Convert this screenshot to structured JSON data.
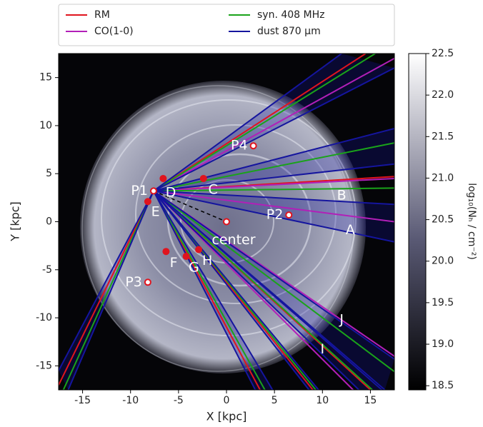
{
  "chart_data": {
    "type": "sightlines",
    "xlabel": "X [kpc]",
    "ylabel": "Y [kpc]",
    "xlim": [
      -17.5,
      17.5
    ],
    "ylim": [
      -17.5,
      17.5
    ],
    "xticks": [
      -15,
      -10,
      -5,
      0,
      5,
      10,
      15
    ],
    "yticks": [
      -15,
      -10,
      -5,
      0,
      5,
      10,
      15
    ],
    "series": [
      {
        "name": "RM",
        "color": "#e0141e",
        "x_end": [
          14.5,
          17.5,
          15.0,
          9.0,
          3.5,
          -17.5
        ],
        "y_end": [
          17.5,
          4.7,
          -17.5,
          -17.5,
          -17.5,
          -17.0
        ]
      },
      {
        "name": "CO(1-0)",
        "color": "#b21fb8",
        "x_end": [
          17.5,
          17.5,
          17.5,
          17.5,
          13.2
        ],
        "y_end": [
          17.0,
          4.5,
          0.0,
          -14.0,
          -17.5
        ]
      },
      {
        "name": "syn. 408 MHz",
        "color": "#1aa31a",
        "x_end": [
          15.5,
          17.5,
          17.5,
          17.5,
          15.2,
          9.3,
          4.0,
          -17.0
        ],
        "y_end": [
          17.5,
          8.2,
          3.5,
          -15.6,
          -17.5,
          -17.5,
          -17.5,
          -17.5
        ]
      },
      {
        "name": "dust 870 μm",
        "color": "#15159e",
        "x_end": [
          12.0,
          17.5,
          17.5,
          17.5,
          17.5,
          17.5,
          17.5,
          16.5,
          13.8,
          16.2,
          8.6,
          9.6,
          3.0,
          4.8,
          -17.5,
          -16.5
        ],
        "y_end": [
          17.5,
          16.0,
          9.7,
          6.0,
          1.8,
          -2.1,
          -14.3,
          -17.5,
          -17.5,
          -17.5,
          -17.5,
          -17.5,
          -17.5,
          -17.5,
          -15.5,
          -17.5
        ]
      }
    ],
    "points": [
      {
        "label": "P1",
        "x": -7.6,
        "y": 3.2
      },
      {
        "label": "P2",
        "x": 6.5,
        "y": 0.7
      },
      {
        "label": "P3",
        "x": -8.2,
        "y": -6.3
      },
      {
        "label": "P4",
        "x": 2.8,
        "y": 7.9
      },
      {
        "label": "center",
        "x": 0.0,
        "y": 0.0
      }
    ],
    "targets": {
      "x": [
        -6.6,
        -2.4,
        -8.2,
        -6.3,
        -4.2,
        -2.9
      ],
      "y": [
        4.5,
        4.5,
        2.1,
        -3.1,
        -3.6,
        -2.9
      ]
    },
    "annotations": [
      {
        "text": "A",
        "x": 12.9,
        "y": -0.9
      },
      {
        "text": "B",
        "x": 12.0,
        "y": 2.7
      },
      {
        "text": "C",
        "x": -1.4,
        "y": 3.3
      },
      {
        "text": "D",
        "x": -5.8,
        "y": 3.0
      },
      {
        "text": "E",
        "x": -7.4,
        "y": 1.0
      },
      {
        "text": "F",
        "x": -5.5,
        "y": -4.3
      },
      {
        "text": "G",
        "x": -3.4,
        "y": -4.8
      },
      {
        "text": "H",
        "x": -2.0,
        "y": -4.1
      },
      {
        "text": "I",
        "x": 10.0,
        "y": -13.3
      },
      {
        "text": "J",
        "x": 12.0,
        "y": -10.2
      }
    ],
    "colorbar": {
      "label": "log₁₀(Nₕ / cm⁻²)",
      "lim": [
        18.45,
        22.5
      ],
      "ticks": [
        18.5,
        {
          "value": 19,
          "label": "19.0"
        },
        19.5,
        {
          "value": 20,
          "label": "20.0"
        },
        20.5,
        {
          "value": 21,
          "label": "21.0"
        },
        21.5,
        {
          "value": 22,
          "label": "22.0"
        },
        22.5
      ]
    }
  }
}
